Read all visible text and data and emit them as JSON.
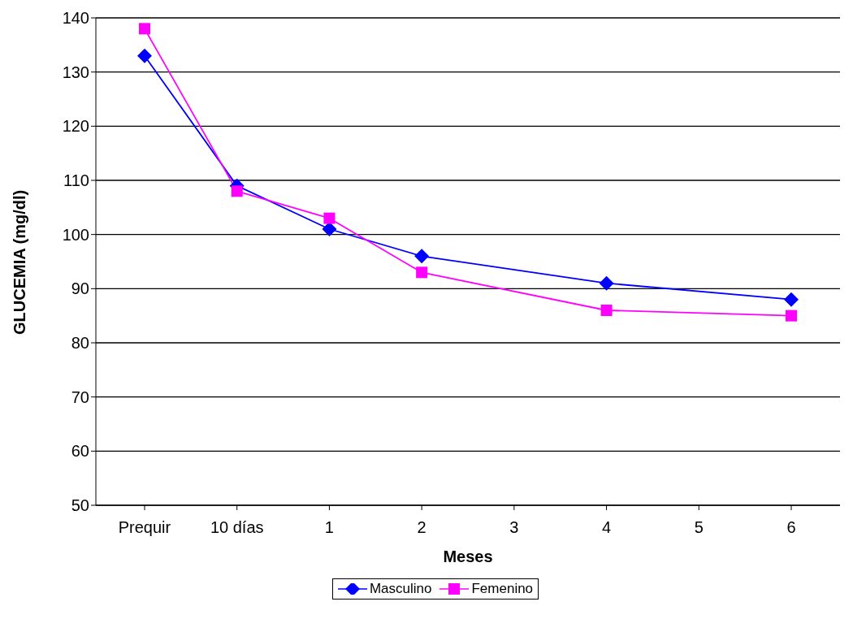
{
  "chart_data": {
    "type": "line",
    "xlabel": "Meses",
    "ylabel": "GLUCEMIA (mg/dl)",
    "categories": [
      "Prequir",
      "10 días",
      "1",
      "2",
      "3",
      "4",
      "5",
      "6"
    ],
    "series": [
      {
        "name": "Masculino",
        "color": "#0000ff",
        "marker": "diamond",
        "values": [
          133,
          109,
          101,
          96,
          null,
          91,
          null,
          88
        ]
      },
      {
        "name": "Femenino",
        "color": "#ff00ff",
        "marker": "square",
        "values": [
          138,
          108,
          103,
          93,
          null,
          86,
          null,
          85
        ]
      }
    ],
    "ylim": [
      50,
      140
    ],
    "yticks": [
      50,
      60,
      70,
      80,
      90,
      100,
      110,
      120,
      130,
      140
    ],
    "grid": "y",
    "legend": "bottom"
  }
}
